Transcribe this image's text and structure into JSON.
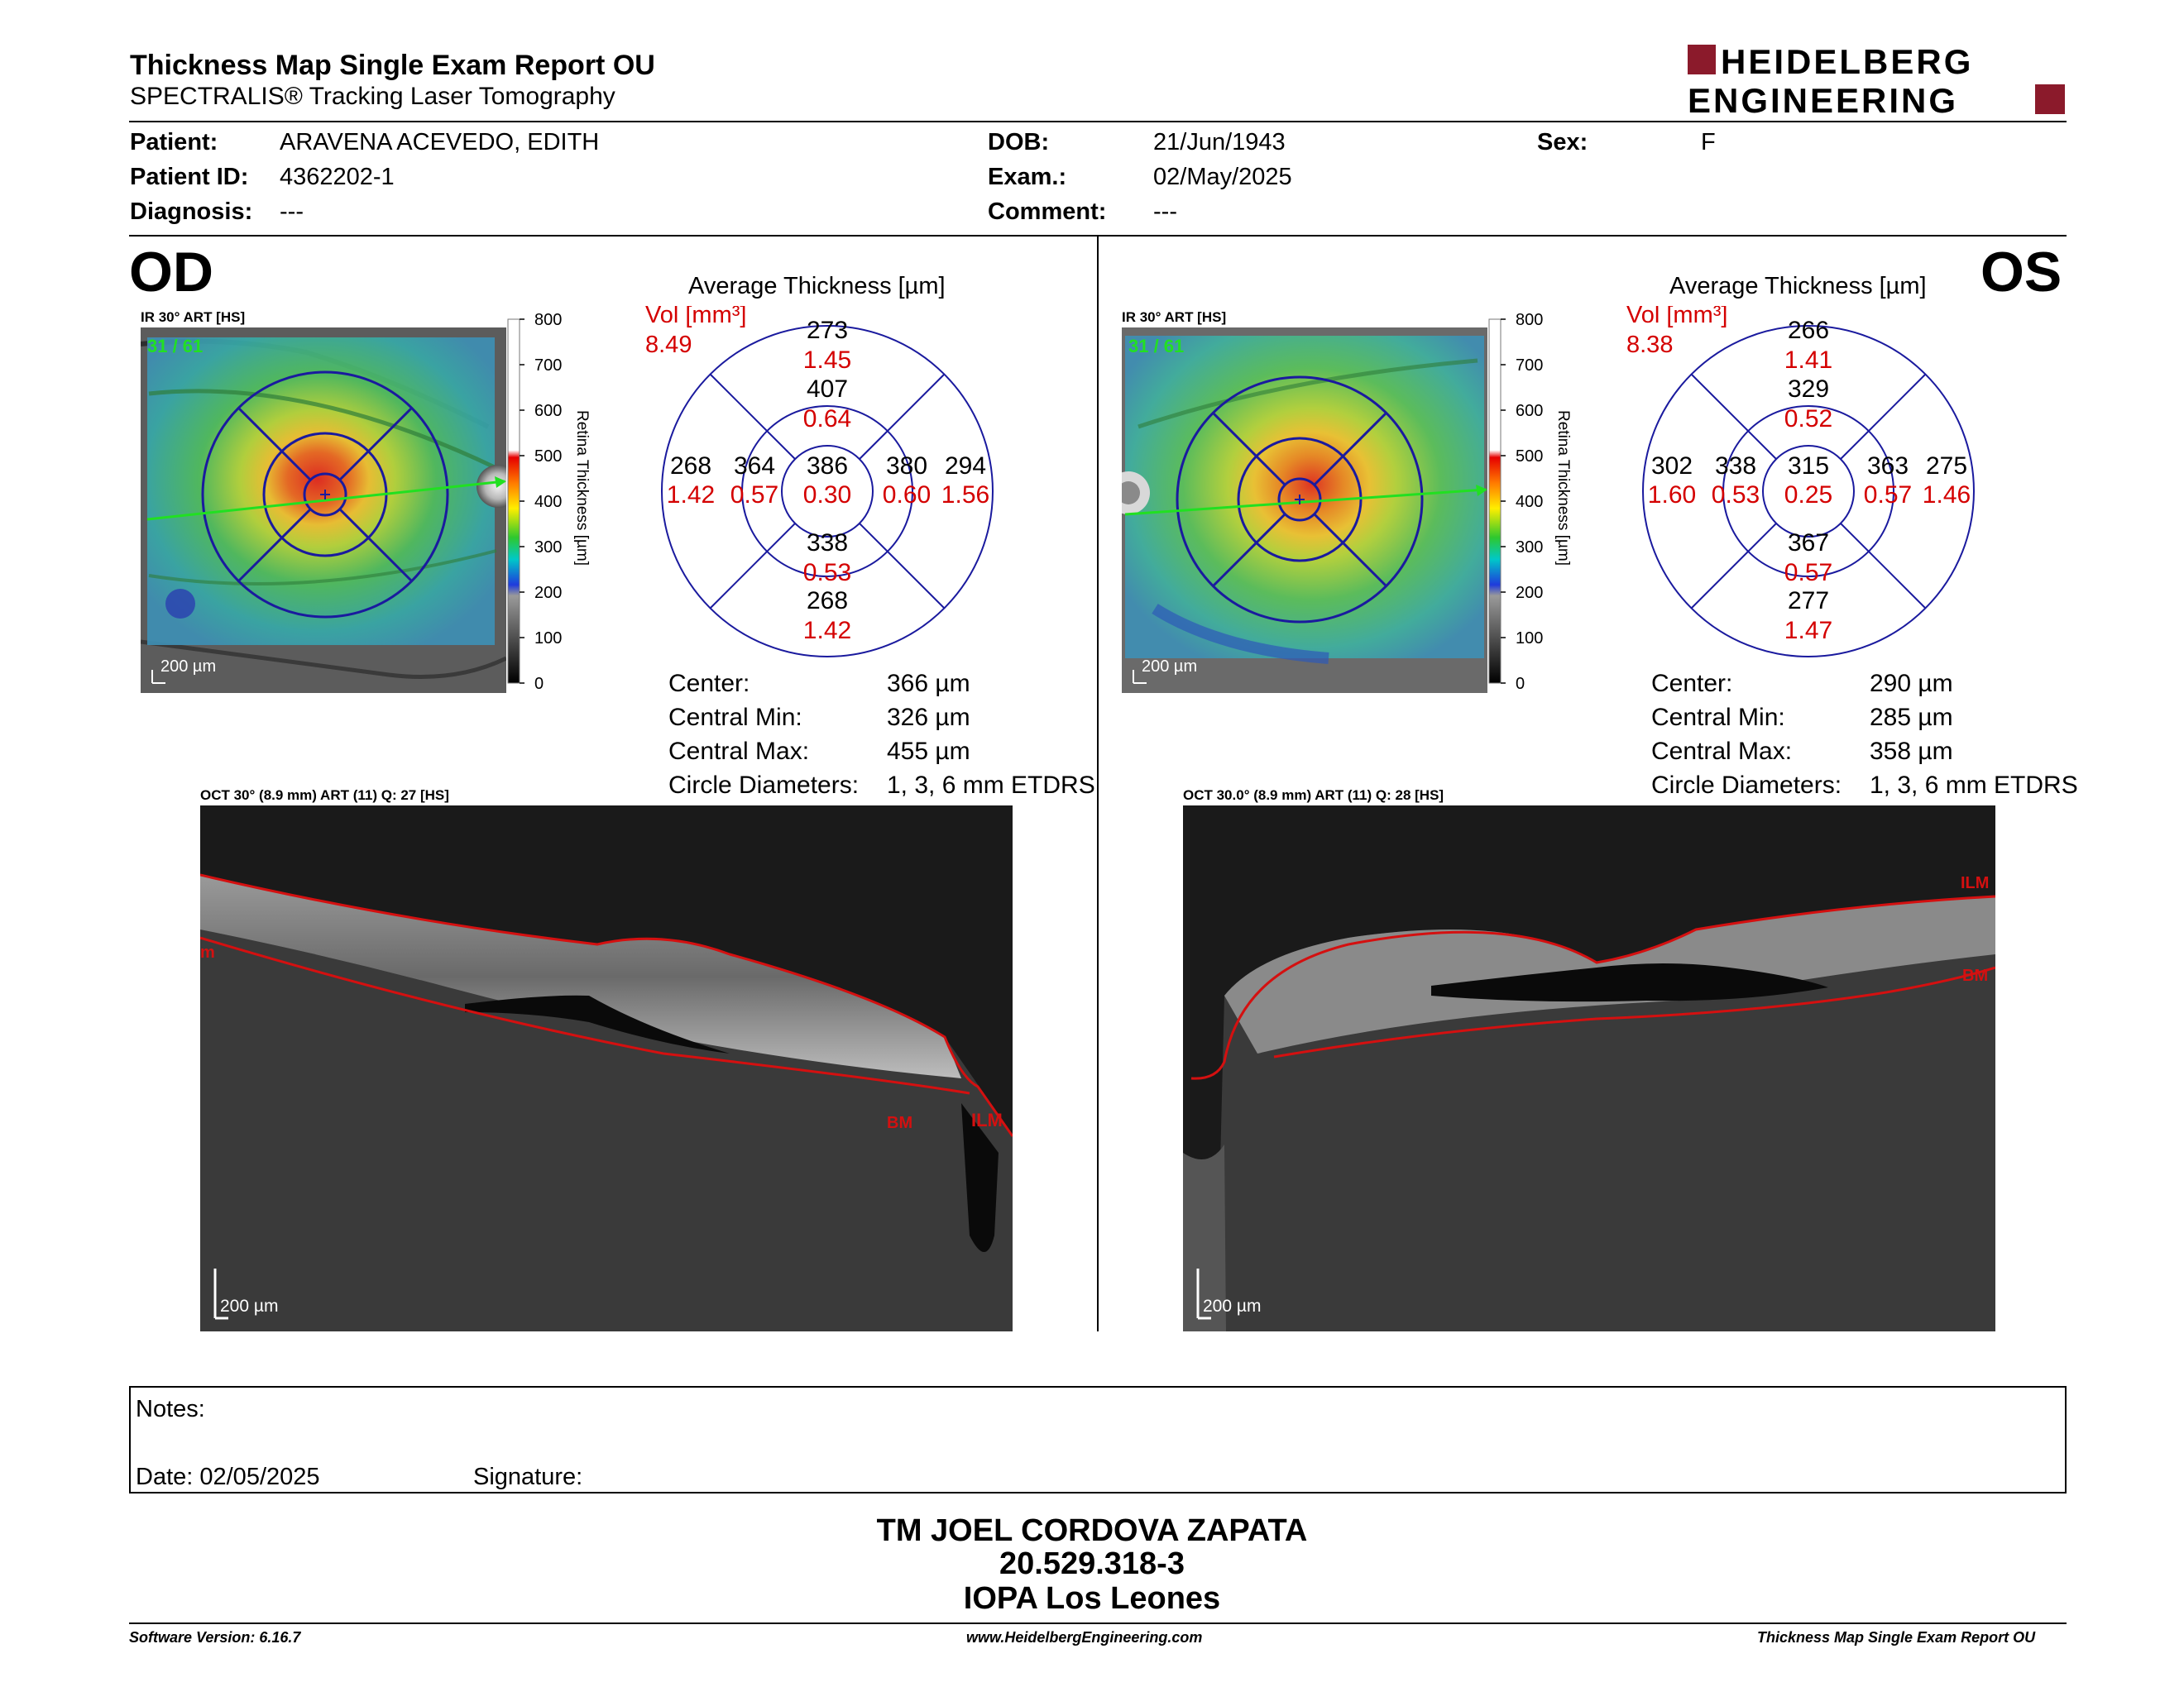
{
  "header": {
    "title": "Thickness Map Single Exam Report OU",
    "subtitle": "SPECTRALIS® Tracking Laser Tomography",
    "logo_line1": "HEIDELBERG",
    "logo_line2": "ENGINEERING",
    "logo_color": "#8b1a2b"
  },
  "patient": {
    "patient_label": "Patient:",
    "patient_value": "ARAVENA ACEVEDO, EDITH",
    "id_label": "Patient ID:",
    "id_value": "4362202-1",
    "diagnosis_label": "Diagnosis:",
    "diagnosis_value": "---",
    "dob_label": "DOB:",
    "dob_value": "21/Jun/1943",
    "exam_label": "Exam.:",
    "exam_value": "02/May/2025",
    "comment_label": "Comment:",
    "comment_value": "---",
    "sex_label": "Sex:",
    "sex_value": "F"
  },
  "colorbar": {
    "ticks": [
      "800",
      "700",
      "600",
      "500",
      "400",
      "300",
      "200",
      "100",
      "0"
    ],
    "label": "Retina Thickness [µm]"
  },
  "od": {
    "eye": "OD",
    "ir_caption": "IR 30° ART [HS]",
    "frame": "31 / 61",
    "scale": "200 µm",
    "avg_title": "Average Thickness [µm]",
    "vol_label": "Vol [mm³]",
    "vol_total": "8.49",
    "grid": {
      "center": {
        "t": "386",
        "v": "0.30"
      },
      "inner_top": {
        "t": "407",
        "v": "0.64"
      },
      "inner_left": {
        "t": "364",
        "v": "0.57"
      },
      "inner_right": {
        "t": "380",
        "v": "0.60"
      },
      "inner_bottom": {
        "t": "338",
        "v": "0.53"
      },
      "outer_top": {
        "t": "273",
        "v": "1.45"
      },
      "outer_left": {
        "t": "268",
        "v": "1.42"
      },
      "outer_right": {
        "t": "294",
        "v": "1.56"
      },
      "outer_bottom": {
        "t": "268",
        "v": "1.42"
      }
    },
    "stats": {
      "center_label": "Center:",
      "center": "366 µm",
      "min_label": "Central Min:",
      "min": "326 µm",
      "max_label": "Central Max:",
      "max": "455 µm",
      "circ_label": "Circle Diameters:",
      "circ": "1, 3, 6 mm ETDRS"
    },
    "oct_caption": "OCT 30° (8.9 mm) ART (11) Q: 27 [HS]",
    "oct_scale": "200 µm",
    "ilm": "ILM",
    "bm": "BM",
    "edge_label": "m"
  },
  "os": {
    "eye": "OS",
    "ir_caption": "IR 30° ART [HS]",
    "frame": "31 / 61",
    "scale": "200 µm",
    "avg_title": "Average Thickness [µm]",
    "vol_label": "Vol [mm³]",
    "vol_total": "8.38",
    "grid": {
      "center": {
        "t": "315",
        "v": "0.25"
      },
      "inner_top": {
        "t": "329",
        "v": "0.52"
      },
      "inner_left": {
        "t": "338",
        "v": "0.53"
      },
      "inner_right": {
        "t": "363",
        "v": "0.57"
      },
      "inner_bottom": {
        "t": "367",
        "v": "0.57"
      },
      "outer_top": {
        "t": "266",
        "v": "1.41"
      },
      "outer_left": {
        "t": "302",
        "v": "1.60"
      },
      "outer_right": {
        "t": "275",
        "v": "1.46"
      },
      "outer_bottom": {
        "t": "277",
        "v": "1.47"
      }
    },
    "stats": {
      "center_label": "Center:",
      "center": "290 µm",
      "min_label": "Central Min:",
      "min": "285 µm",
      "max_label": "Central Max:",
      "max": "358 µm",
      "circ_label": "Circle Diameters:",
      "circ": "1, 3, 6 mm ETDRS"
    },
    "oct_caption": "OCT 30.0° (8.9 mm) ART (11) Q: 28 [HS]",
    "oct_scale": "200 µm",
    "ilm": "ILM",
    "bm": "BM"
  },
  "notes": {
    "notes_label": "Notes:",
    "date_label": "Date: 02/05/2025",
    "signature_label": "Signature:"
  },
  "footer": {
    "line1": "TM JOEL CORDOVA ZAPATA",
    "line2": "20.529.318-3",
    "line3": "IOPA Los Leones",
    "software": "Software Version: 6.16.7",
    "website": "www.HeidelbergEngineering.com",
    "report": "Thickness Map Single Exam Report OU"
  }
}
